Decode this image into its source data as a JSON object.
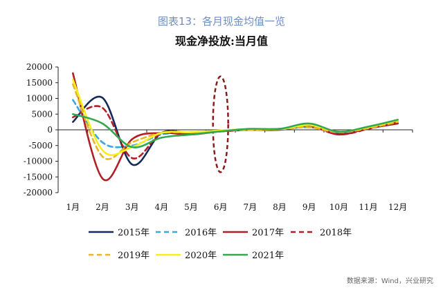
{
  "figure_label": "图表13：各月现金均值一览",
  "source": "数据来源：Wind，兴业研究",
  "colors": {
    "2015": "#14285a",
    "2016": "#35a8e0",
    "2017": "#b01f24",
    "2018": "#b01f24",
    "2019": "#e8b62a",
    "2020": "#f7ef1a",
    "2021": "#2fa84f",
    "highlight": "#8b1a1a"
  },
  "chart_data": {
    "type": "line",
    "title": "现金净投放:当月值",
    "xlabel": "",
    "ylabel": "",
    "categories": [
      "1月",
      "2月",
      "3月",
      "4月",
      "5月",
      "6月",
      "7月",
      "8月",
      "9月",
      "10月",
      "11月",
      "12月"
    ],
    "ylim": [
      -20000,
      20000
    ],
    "yticks": [
      20000,
      15000,
      10000,
      5000,
      0,
      -5000,
      -10000,
      -15000,
      -20000
    ],
    "grid": false,
    "legend": "bottom",
    "annotation": "dashed ellipse highlighting 6月",
    "series": [
      {
        "name": "2015年",
        "dash": "solid",
        "values": [
          2500,
          10200,
          -11000,
          -1000,
          -1200,
          -400,
          0,
          0,
          1000,
          -1000,
          500,
          2000
        ]
      },
      {
        "name": "2016年",
        "dash": "dashed",
        "values": [
          9500,
          -4000,
          -5000,
          -1500,
          -800,
          -200,
          200,
          200,
          800,
          -800,
          600,
          2500
        ]
      },
      {
        "name": "2017年",
        "dash": "solid",
        "values": [
          18000,
          -15500,
          -3000,
          -1000,
          -1500,
          -500,
          0,
          200,
          1500,
          -1500,
          500,
          2000
        ]
      },
      {
        "name": "2018年",
        "dash": "dashed",
        "values": [
          4000,
          7000,
          -9000,
          -1000,
          -1000,
          -500,
          0,
          300,
          1200,
          -1500,
          300,
          2500
        ]
      },
      {
        "name": "2019年",
        "dash": "dashed",
        "values": [
          14500,
          -8500,
          -4000,
          -1000,
          -800,
          -300,
          0,
          200,
          800,
          -800,
          500,
          2500
        ]
      },
      {
        "name": "2020年",
        "dash": "solid",
        "values": [
          16000,
          -6500,
          -5500,
          -1000,
          -800,
          -200,
          200,
          200,
          1500,
          -600,
          800,
          3000
        ]
      },
      {
        "name": "2021年",
        "dash": "solid",
        "values": [
          5000,
          2000,
          -5500,
          -2500,
          -1500,
          -500,
          300,
          300,
          2000,
          -600,
          1000,
          3200
        ]
      }
    ]
  }
}
